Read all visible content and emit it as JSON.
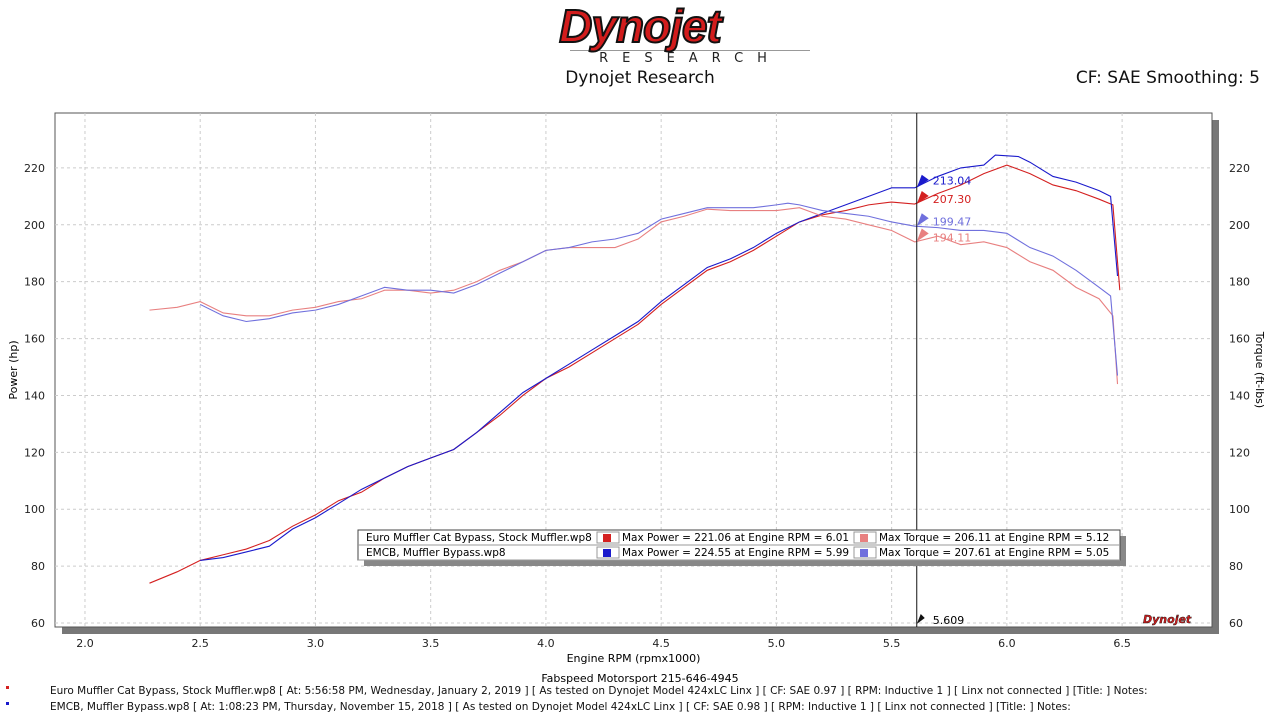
{
  "header": {
    "logo_text": "Dynojet",
    "logo_sub": "RESEARCH",
    "title": "Dynojet Research",
    "cf": "CF: SAE Smoothing: 5"
  },
  "footer": {
    "shop": "Fabspeed Motorsport 215-646-4945",
    "runs": [
      {
        "text": "Euro Muffler Cat Bypass, Stock Muffler.wp8 [ At: 5:56:58 PM, Wednesday, January 2, 2019 ] [ As tested on Dynojet Model 424xLC Linx ] [ CF: SAE 0.97 ] [ RPM: Inductive 1 ] [ Linx not connected ] [Title: ]  Notes:",
        "color": "#d42020"
      },
      {
        "text": "EMCB, Muffler Bypass.wp8 [ At: 1:08:23 PM, Thursday, November 15, 2018 ] [ As tested on Dynojet Model 424xLC Linx ] [ CF: SAE 0.98 ] [ RPM: Inductive 1 ] [ Linx not connected ] [Title: ]  Notes:",
        "color": "#1a1acc"
      }
    ]
  },
  "chart_data": {
    "type": "line",
    "xlabel": "Engine RPM (rpmx1000)",
    "ylabel": "Power (hp)",
    "y2label": "Torque (ft-lbs)",
    "xlim": [
      1.87,
      6.89
    ],
    "ylim": [
      58.6,
      239.3
    ],
    "grid": true,
    "xticks": [
      "2.0",
      "2.5",
      "3.0",
      "3.5",
      "4.0",
      "4.5",
      "5.0",
      "5.5",
      "6.0",
      "6.5"
    ],
    "yticks": [
      "60",
      "80",
      "100",
      "120",
      "140",
      "160",
      "180",
      "200",
      "220"
    ],
    "cursor": {
      "x": 5.609,
      "label": "5.609",
      "values": [
        {
          "v": "213.04",
          "y": 213.04,
          "color": "#1a1acc"
        },
        {
          "v": "207.30",
          "y": 207.3,
          "color": "#d42020"
        },
        {
          "v": "199.47",
          "y": 199.47,
          "color": "#7070dd"
        },
        {
          "v": "194.11",
          "y": 194.11,
          "color": "#e88080"
        }
      ]
    },
    "legend": [
      {
        "run": "Euro Muffler Cat Bypass, Stock Muffler.wp8",
        "power": "Max Power = 221.06 at Engine RPM = 6.01",
        "torque": "Max Torque = 206.11 at Engine RPM = 5.12",
        "pc": "#d42020",
        "tc": "#e88080"
      },
      {
        "run": "EMCB, Muffler Bypass.wp8",
        "power": "Max Power = 224.55 at Engine RPM = 5.99",
        "torque": "Max Torque = 207.61 at Engine RPM = 5.05",
        "pc": "#1a1acc",
        "tc": "#7070dd"
      }
    ],
    "series": [
      {
        "name": "Euro Muffler Cat Bypass, Stock Muffler.wp8 Power",
        "color": "#d42020",
        "x": [
          2.28,
          2.4,
          2.5,
          2.6,
          2.7,
          2.8,
          2.9,
          3.0,
          3.1,
          3.2,
          3.3,
          3.4,
          3.5,
          3.6,
          3.7,
          3.8,
          3.9,
          4.0,
          4.1,
          4.2,
          4.3,
          4.4,
          4.5,
          4.6,
          4.7,
          4.8,
          4.9,
          5.0,
          5.1,
          5.2,
          5.3,
          5.4,
          5.5,
          5.6,
          5.7,
          5.8,
          5.9,
          6.0,
          6.1,
          6.2,
          6.3,
          6.4,
          6.46,
          6.49
        ],
        "y": [
          74,
          78,
          82,
          84,
          86,
          89,
          94,
          98,
          103,
          106,
          111,
          115,
          118,
          121,
          127,
          133,
          140,
          146,
          150,
          155,
          160,
          165,
          172,
          178,
          184,
          187,
          191,
          196,
          201,
          203.5,
          205,
          207,
          208,
          207.3,
          211,
          214,
          218,
          221,
          218,
          214,
          212,
          209,
          207,
          177
        ]
      },
      {
        "name": "EMCB, Muffler Bypass.wp8 Power",
        "color": "#1a1acc",
        "x": [
          2.5,
          2.6,
          2.7,
          2.8,
          2.9,
          3.0,
          3.1,
          3.2,
          3.3,
          3.4,
          3.5,
          3.6,
          3.7,
          3.8,
          3.9,
          4.0,
          4.1,
          4.2,
          4.3,
          4.4,
          4.5,
          4.6,
          4.7,
          4.8,
          4.9,
          5.0,
          5.1,
          5.2,
          5.3,
          5.4,
          5.5,
          5.6,
          5.7,
          5.8,
          5.9,
          5.95,
          6.05,
          6.1,
          6.2,
          6.3,
          6.4,
          6.45,
          6.48
        ],
        "y": [
          82,
          83,
          85,
          87,
          93,
          97,
          102,
          107,
          111,
          115,
          118,
          121,
          127,
          134,
          141,
          146,
          151,
          156,
          161,
          166,
          173,
          179,
          185,
          188,
          192,
          197,
          201,
          204,
          207,
          210,
          213,
          213,
          217,
          220,
          221,
          224.5,
          224,
          222,
          217,
          215,
          212,
          210,
          182
        ]
      },
      {
        "name": "Euro Muffler Cat Bypass, Stock Muffler.wp8 Torque",
        "color": "#e88080",
        "x": [
          2.28,
          2.4,
          2.5,
          2.6,
          2.7,
          2.8,
          2.9,
          3.0,
          3.1,
          3.2,
          3.3,
          3.4,
          3.5,
          3.6,
          3.7,
          3.8,
          3.9,
          4.0,
          4.1,
          4.2,
          4.3,
          4.4,
          4.5,
          4.6,
          4.7,
          4.8,
          4.9,
          5.0,
          5.1,
          5.2,
          5.3,
          5.4,
          5.5,
          5.6,
          5.7,
          5.8,
          5.9,
          6.0,
          6.1,
          6.2,
          6.3,
          6.4,
          6.46,
          6.48
        ],
        "y": [
          170,
          171,
          173,
          169,
          168,
          168,
          170,
          171,
          173,
          174,
          177,
          177,
          176,
          177,
          180,
          184,
          187,
          191,
          192,
          192,
          192,
          195,
          201,
          203,
          205.5,
          205,
          205,
          205,
          206,
          203,
          202,
          200,
          198,
          194,
          196,
          193,
          194,
          192,
          187,
          184,
          178,
          174,
          168,
          144
        ]
      },
      {
        "name": "EMCB, Muffler Bypass.wp8 Torque",
        "color": "#7070dd",
        "x": [
          2.5,
          2.6,
          2.7,
          2.8,
          2.9,
          3.0,
          3.1,
          3.2,
          3.3,
          3.4,
          3.5,
          3.6,
          3.7,
          3.8,
          3.9,
          4.0,
          4.1,
          4.2,
          4.3,
          4.4,
          4.5,
          4.6,
          4.7,
          4.8,
          4.9,
          5.0,
          5.05,
          5.1,
          5.2,
          5.3,
          5.4,
          5.5,
          5.6,
          5.7,
          5.8,
          5.9,
          6.0,
          6.1,
          6.2,
          6.3,
          6.4,
          6.45,
          6.48
        ],
        "y": [
          172,
          168,
          166,
          167,
          169,
          170,
          172,
          175,
          178,
          177,
          177,
          176,
          179,
          183,
          187,
          191,
          192,
          194,
          195,
          197,
          202,
          204,
          206,
          206,
          206,
          207,
          207.6,
          207,
          205,
          204,
          203,
          201,
          199.5,
          199,
          198,
          198,
          197,
          192,
          189,
          184,
          178,
          175,
          147
        ]
      }
    ]
  }
}
